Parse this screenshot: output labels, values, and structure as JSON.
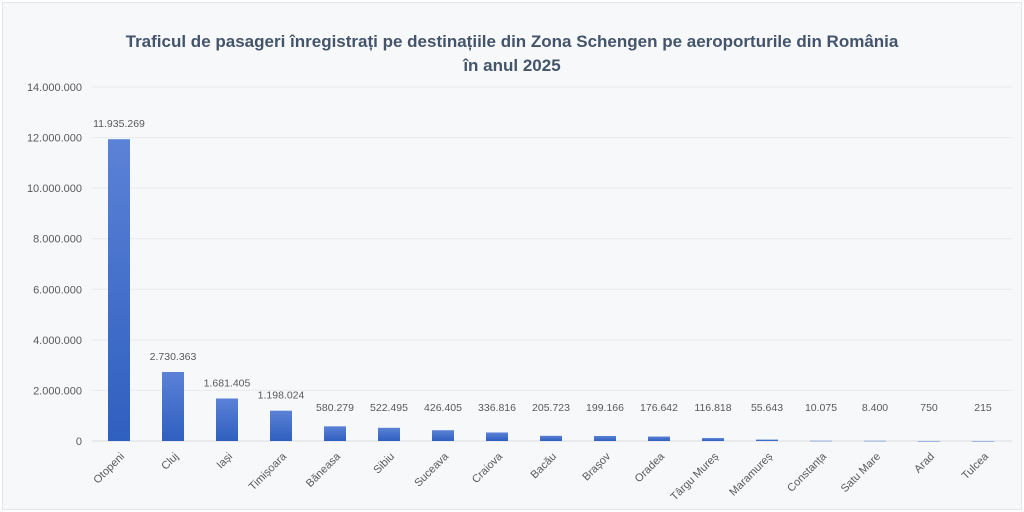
{
  "chart_data": {
    "type": "bar",
    "title": [
      "Traficul de pasageri înregistrați pe destinațiile din Zona Schengen pe aeroporturile din România",
      "în anul 2025"
    ],
    "categories": [
      "Otopeni",
      "Cluj",
      "Iași",
      "Timișoara",
      "Băneasa",
      "Sibiu",
      "Suceava",
      "Craiova",
      "Bacău",
      "Brașov",
      "Oradea",
      "Târgu Mureș",
      "Maramureș",
      "Constanța",
      "Satu Mare",
      "Arad",
      "Tulcea"
    ],
    "values": [
      11935269,
      2730363,
      1681405,
      1198024,
      580279,
      522495,
      426405,
      336816,
      205723,
      199166,
      176642,
      116818,
      55643,
      10075,
      8400,
      750,
      215
    ],
    "data_labels": [
      "11.935.269",
      "2.730.363",
      "1.681.405",
      "1.198.024",
      "580.279",
      "522.495",
      "426.405",
      "336.816",
      "205.723",
      "199.166",
      "176.642",
      "116.818",
      "55.643",
      "10.075",
      "8.400",
      "750",
      "215"
    ],
    "yticks": [
      0,
      2000000,
      4000000,
      6000000,
      8000000,
      10000000,
      12000000,
      14000000
    ],
    "ytick_labels": [
      "0",
      "2.000.000",
      "4.000.000",
      "6.000.000",
      "8.000.000",
      "10.000.000",
      "12.000.000",
      "14.000.000"
    ],
    "ylim": [
      0,
      14000000
    ],
    "grid": true,
    "legend": "none",
    "bar_color": "#3a68c8"
  }
}
